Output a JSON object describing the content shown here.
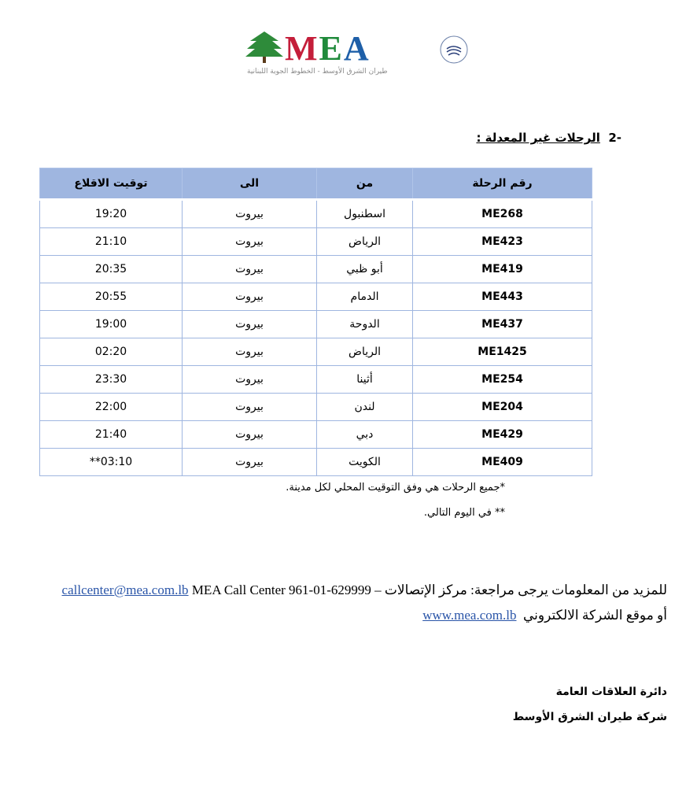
{
  "logo": {
    "brand": "MEA",
    "subtitle": "طيران الشرق الأوسط - الخطوط الجوية اللبنانية",
    "alliance": "SKYTEAM",
    "colors": {
      "M": "#c41e3a",
      "E": "#1f8a3b",
      "A": "#1e5fa8",
      "tree": "#2e8b3a"
    }
  },
  "section": {
    "number": "-2",
    "title": "الرحلات غير المعدلة :"
  },
  "table": {
    "headers": [
      "رقم الرحلة",
      "من",
      "الى",
      "توقيت الاقلاع"
    ],
    "rows": [
      [
        "ME268",
        "اسطنبول",
        "بيروت",
        "19:20"
      ],
      [
        "ME423",
        "الرياض",
        "بيروت",
        "21:10"
      ],
      [
        "ME419",
        "أبو ظبي",
        "بيروت",
        "20:35"
      ],
      [
        "ME443",
        "الدمام",
        "بيروت",
        "20:55"
      ],
      [
        "ME437",
        "الدوحة",
        "بيروت",
        "19:00"
      ],
      [
        "ME1425",
        "الرياض",
        "بيروت",
        "02:20"
      ],
      [
        "ME254",
        "أثينا",
        "بيروت",
        "23:30"
      ],
      [
        "ME204",
        "لندن",
        "بيروت",
        "22:00"
      ],
      [
        "ME429",
        "دبي",
        "بيروت",
        "21:40"
      ],
      [
        "ME409",
        "الكويت",
        "بيروت",
        "**03:10"
      ]
    ]
  },
  "notes": [
    "*جميع الرحلات هي وفق التوقيت المحلي لكل مدينة.",
    "** في اليوم التالي."
  ],
  "contact": {
    "intro": "للمزيد من المعلومات يرجى مراجعة: مركز الإتصالات",
    "call_center": " MEA Call Center 961-01-629999 – ",
    "email": "callcenter@mea.com.lb",
    "website_intro": "أو موقع الشركة الالكتروني",
    "website": "www.mea.com.lb"
  },
  "signature": {
    "department": "دائرة العلاقات العامة",
    "company": "شركة طيران الشرق الأوسط"
  }
}
